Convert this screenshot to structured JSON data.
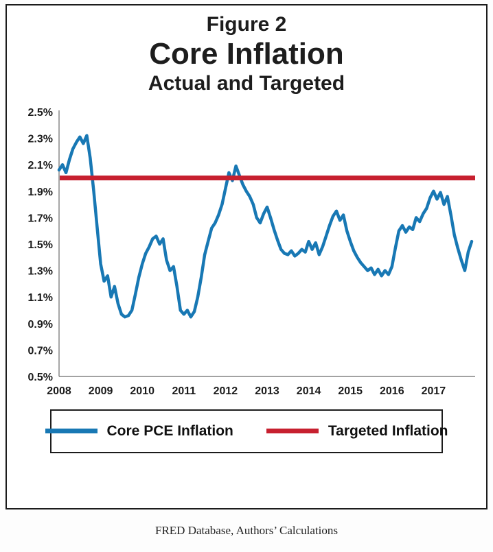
{
  "chart_data": {
    "type": "line",
    "figure_label": "Figure 2",
    "title": "Core Inflation",
    "subtitle": "Actual and Targeted",
    "xlim": [
      2008,
      2018
    ],
    "ylim": [
      0.5,
      2.5
    ],
    "ytick_step": 0.2,
    "ytick_labels": [
      "0.5%",
      "0.7%",
      "0.9%",
      "1.1%",
      "1.3%",
      "1.5%",
      "1.7%",
      "1.9%",
      "2.1%",
      "2.3%",
      "2.5%"
    ],
    "xtick_labels": [
      "2008",
      "2009",
      "2010",
      "2011",
      "2012",
      "2013",
      "2014",
      "2015",
      "2016",
      "2017"
    ],
    "grid": false,
    "legend_position": "bottom",
    "series": [
      {
        "name": "Core PCE Inflation",
        "type": "line",
        "color": "#1878b4",
        "x_start": 2008.0,
        "points_per_year": 12,
        "values": [
          2.06,
          2.1,
          2.04,
          2.14,
          2.22,
          2.27,
          2.31,
          2.26,
          2.32,
          2.15,
          1.9,
          1.62,
          1.35,
          1.22,
          1.26,
          1.1,
          1.18,
          1.05,
          0.97,
          0.95,
          0.96,
          1.0,
          1.12,
          1.25,
          1.35,
          1.43,
          1.48,
          1.54,
          1.56,
          1.5,
          1.54,
          1.38,
          1.3,
          1.33,
          1.18,
          1.0,
          0.97,
          1.0,
          0.95,
          0.99,
          1.1,
          1.25,
          1.42,
          1.52,
          1.62,
          1.66,
          1.72,
          1.8,
          1.92,
          2.04,
          1.98,
          2.09,
          2.02,
          1.95,
          1.9,
          1.86,
          1.8,
          1.7,
          1.66,
          1.73,
          1.78,
          1.7,
          1.61,
          1.53,
          1.46,
          1.43,
          1.42,
          1.45,
          1.41,
          1.43,
          1.46,
          1.44,
          1.52,
          1.46,
          1.51,
          1.42,
          1.48,
          1.56,
          1.64,
          1.71,
          1.75,
          1.68,
          1.72,
          1.6,
          1.52,
          1.45,
          1.4,
          1.36,
          1.33,
          1.3,
          1.32,
          1.27,
          1.31,
          1.26,
          1.3,
          1.27,
          1.33,
          1.47,
          1.6,
          1.64,
          1.59,
          1.63,
          1.61,
          1.7,
          1.67,
          1.73,
          1.77,
          1.85,
          1.9,
          1.84,
          1.89,
          1.8,
          1.86,
          1.72,
          1.57,
          1.47,
          1.38,
          1.3,
          1.44,
          1.52
        ]
      },
      {
        "name": "Targeted Inflation",
        "type": "hline",
        "color": "#c7202f",
        "value": 2.0
      }
    ]
  },
  "caption": "FRED Database, Authors’ Calculations"
}
